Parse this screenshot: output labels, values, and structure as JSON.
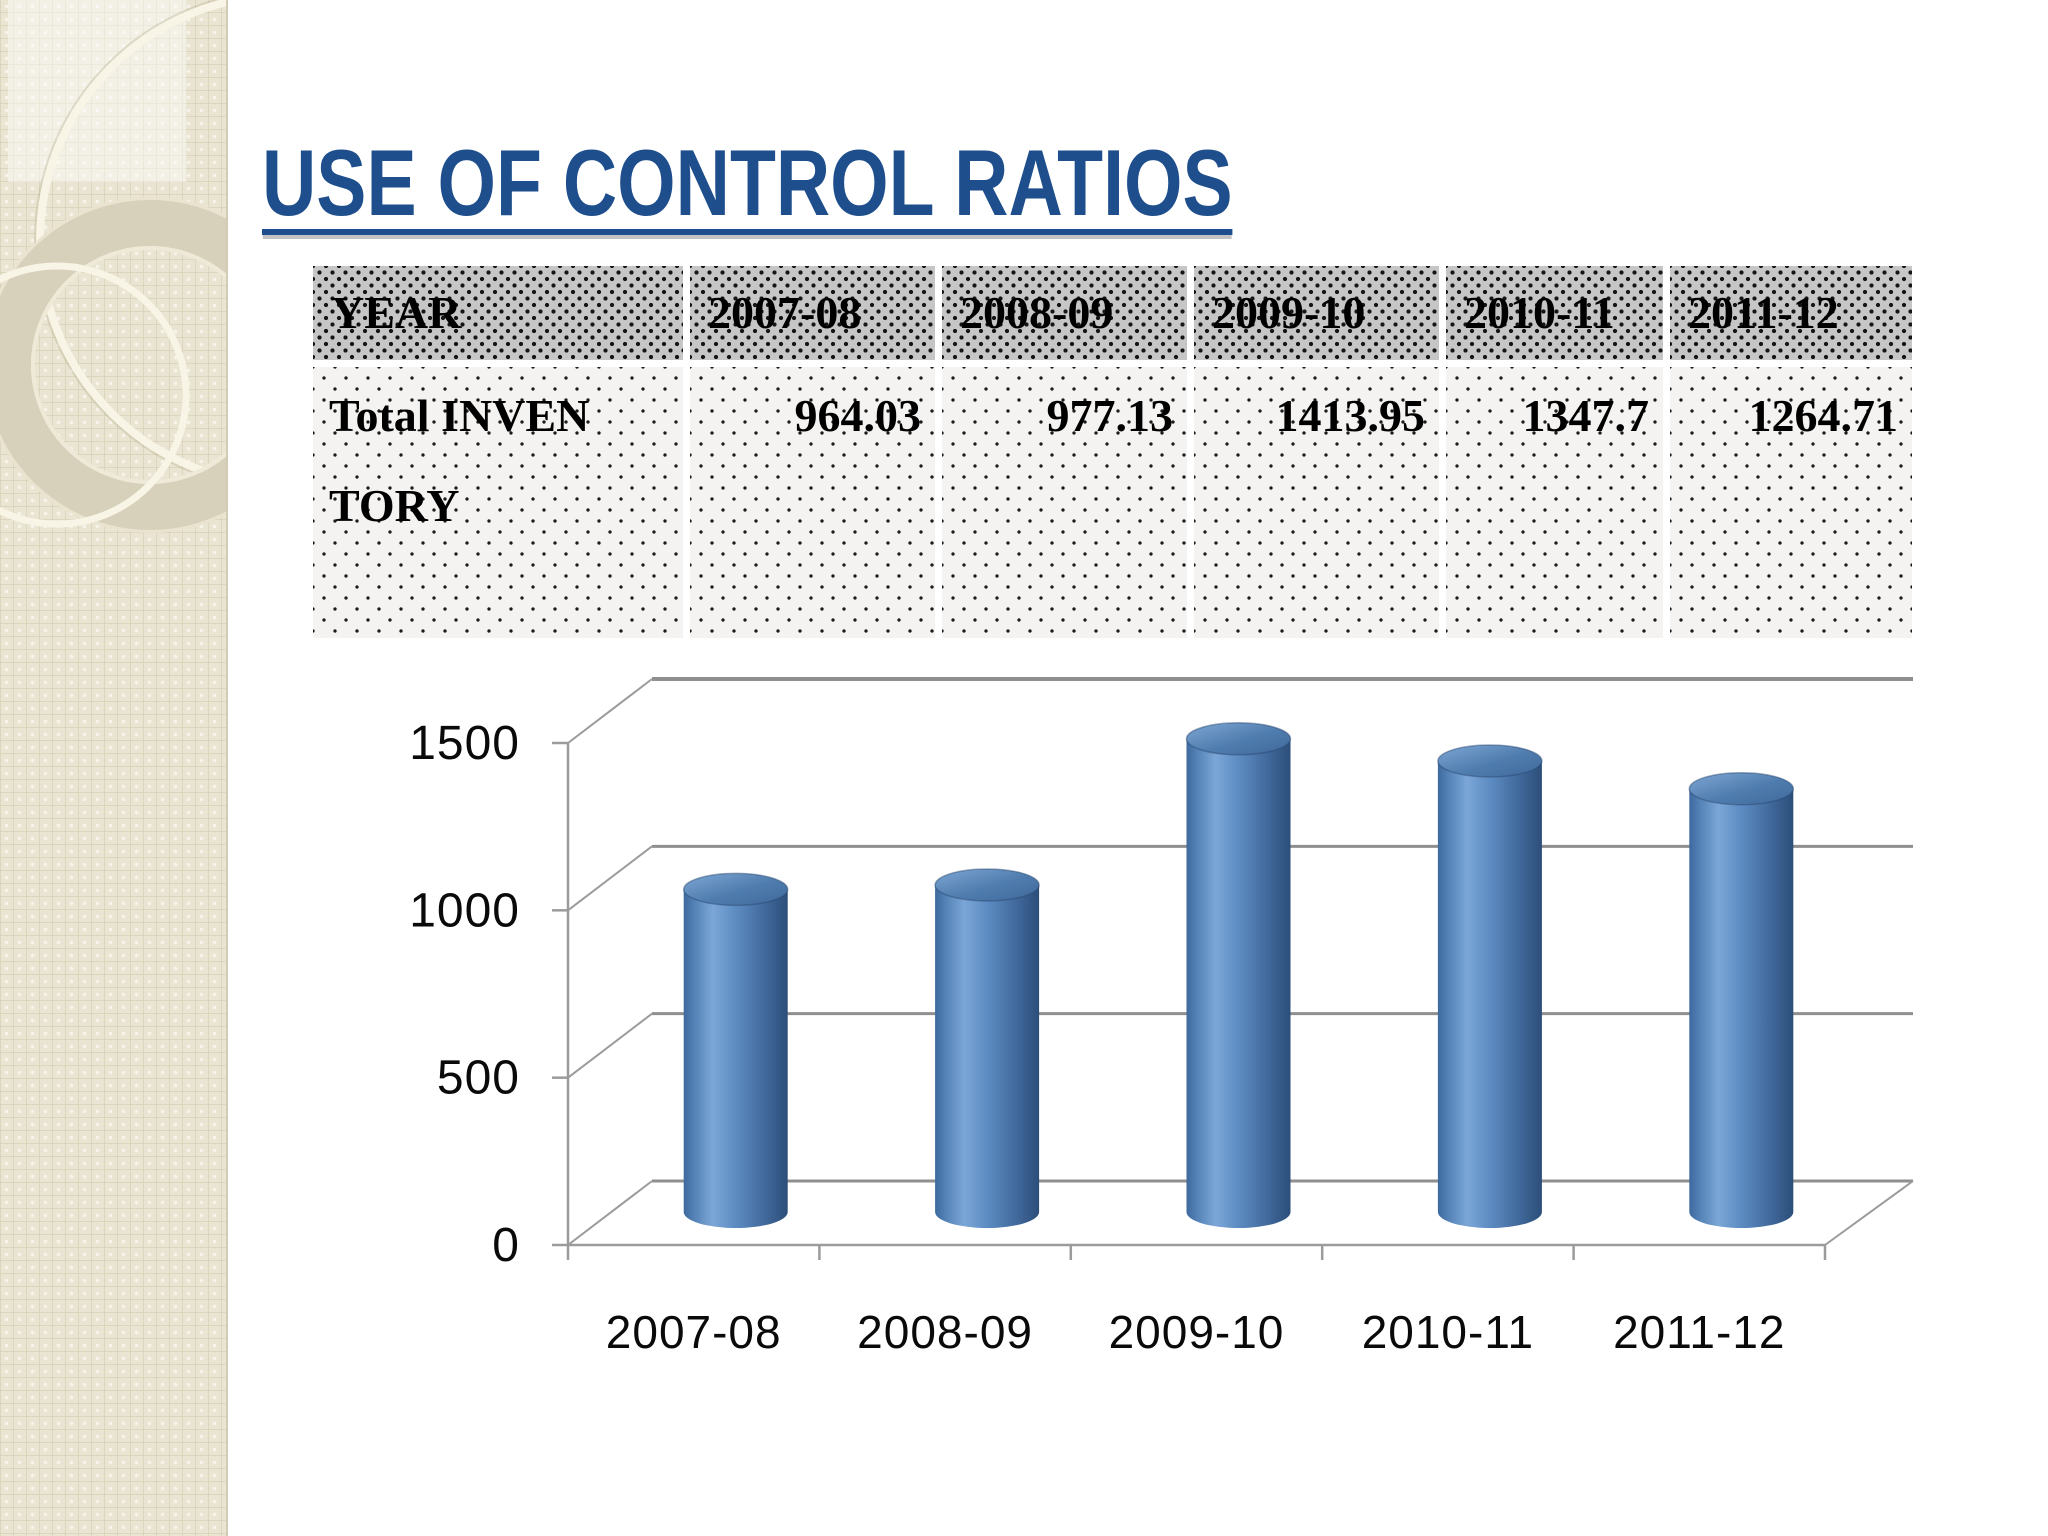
{
  "slide": {
    "title": "USE OF CONTROL RATIOS"
  },
  "table": {
    "header": [
      "YEAR",
      "2007-08",
      "2008-09",
      "2009-10",
      "2010-11",
      "2011-12"
    ],
    "rows": [
      {
        "label": "Total INVENTORY",
        "values": [
          "964.03",
          "977.13",
          "1413.95",
          "1347.7",
          "1264.71"
        ]
      }
    ]
  },
  "chart_data": {
    "type": "bar",
    "subtype": "3d-cylinder",
    "title": "",
    "xlabel": "",
    "ylabel": "",
    "categories": [
      "2007-08",
      "2008-09",
      "2009-10",
      "2010-11",
      "2011-12"
    ],
    "series": [
      {
        "name": "Total Inventory",
        "values": [
          964.03,
          977.13,
          1413.95,
          1347.7,
          1264.71
        ]
      }
    ],
    "ylim": [
      0,
      1500
    ],
    "yticks": [
      0,
      500,
      1000,
      1500
    ],
    "grid": true,
    "legend_position": "none",
    "bar_color": "#4f81bd"
  },
  "colors": {
    "title_text": "#1e4e8c",
    "grid_line": "#8f8f8f",
    "axis_line": "#9b9b9b",
    "sidebar_base": "#eae5d2",
    "header_cell_bg": "#c6c6c6",
    "data_cell_bg": "#f4f3f1"
  }
}
